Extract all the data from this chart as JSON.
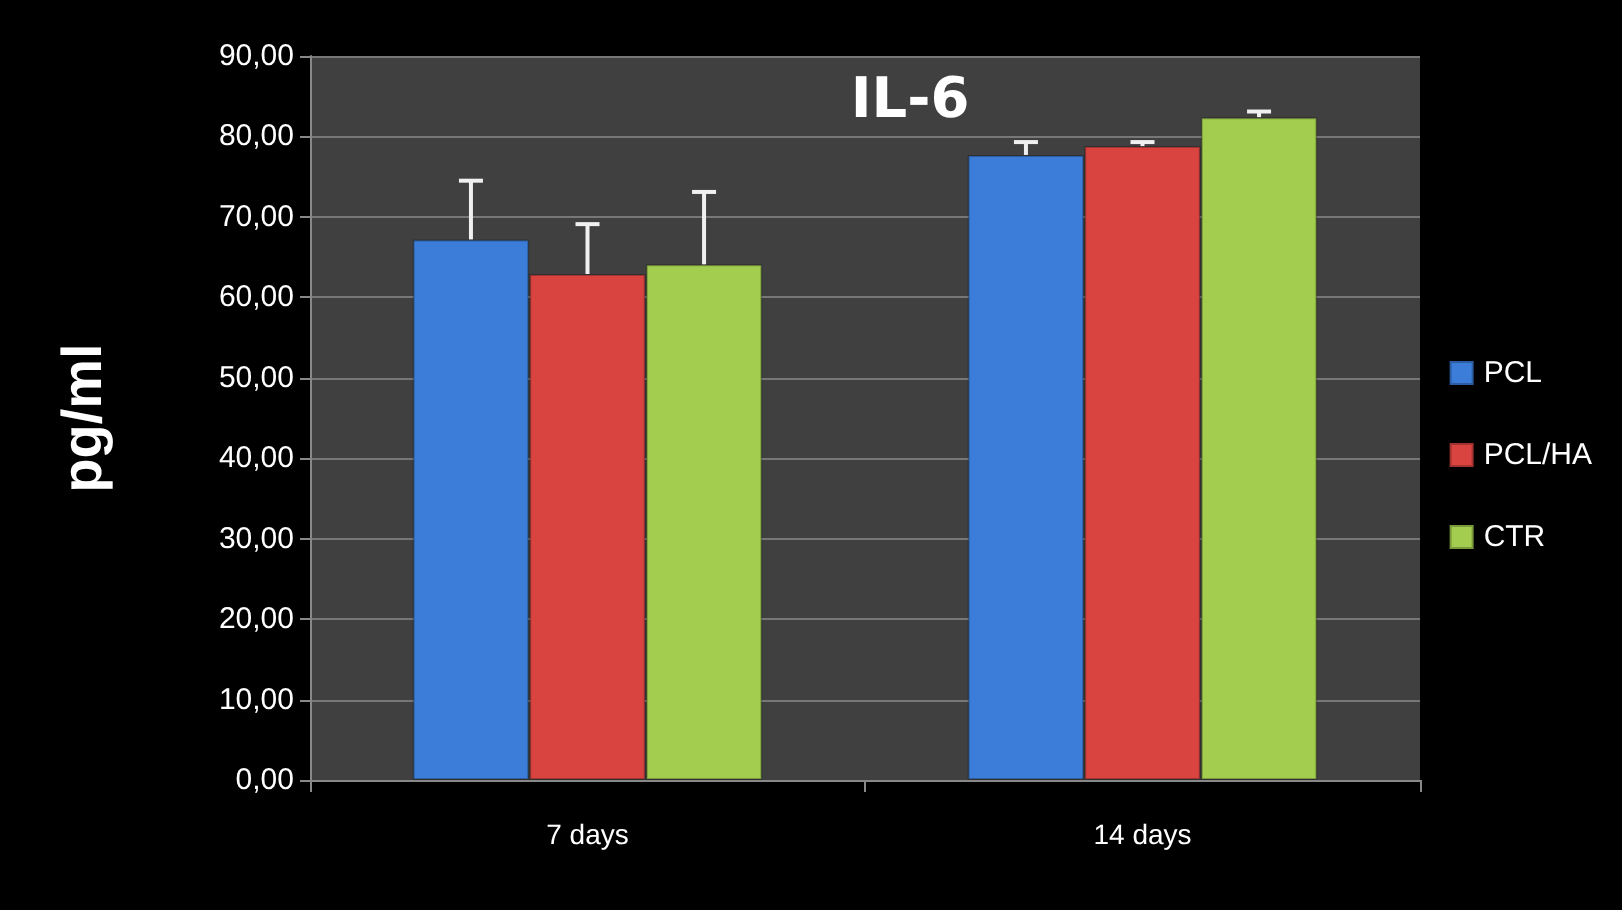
{
  "chart_data": {
    "type": "bar",
    "title": "IL-6",
    "ylabel": "pg/ml",
    "categories": [
      "7 days",
      "14 days"
    ],
    "series": [
      {
        "name": "PCL",
        "color": "#3b7dd8",
        "values": [
          67.2,
          77.7
        ],
        "errors": [
          [
            67.2,
            74.5
          ],
          [
            77.7,
            79.3
          ]
        ]
      },
      {
        "name": "PCL/HA",
        "color": "#d94441",
        "values": [
          62.9,
          78.8
        ],
        "errors": [
          [
            62.9,
            69.1
          ],
          [
            78.8,
            79.3
          ]
        ]
      },
      {
        "name": "CTR",
        "color": "#a2cd4f",
        "values": [
          64.1,
          82.4
        ],
        "errors": [
          [
            64.1,
            73.1
          ],
          [
            82.4,
            83.1
          ]
        ]
      }
    ],
    "ylim": [
      0,
      90
    ],
    "yticks": [
      {
        "value": 0,
        "label": "0,00"
      },
      {
        "value": 10,
        "label": "10,00"
      },
      {
        "value": 20,
        "label": "20,00"
      },
      {
        "value": 30,
        "label": "30,00"
      },
      {
        "value": 40,
        "label": "40,00"
      },
      {
        "value": 50,
        "label": "50,00"
      },
      {
        "value": 60,
        "label": "60,00"
      },
      {
        "value": 70,
        "label": "70,00"
      },
      {
        "value": 80,
        "label": "80,00"
      },
      {
        "value": 90,
        "label": "90,00"
      }
    ],
    "grid": "y",
    "legend": "right"
  }
}
